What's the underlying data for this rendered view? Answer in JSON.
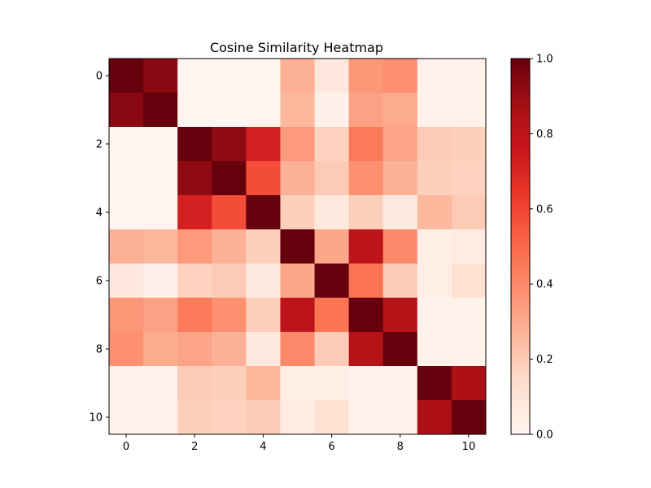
{
  "chart_data": {
    "type": "heatmap",
    "title": "Cosine Similarity Heatmap",
    "xlabel": "",
    "ylabel": "",
    "x_ticks": [
      "0",
      "2",
      "4",
      "6",
      "8",
      "10"
    ],
    "y_ticks": [
      "0",
      "2",
      "4",
      "6",
      "8",
      "10"
    ],
    "colormap": "Reds",
    "vmin": 0.0,
    "vmax": 1.0,
    "colorbar_ticks": [
      "0.0",
      "0.2",
      "0.4",
      "0.6",
      "0.8",
      "1.0"
    ],
    "matrix": [
      [
        1.0,
        0.93,
        0.0,
        0.0,
        0.0,
        0.28,
        0.08,
        0.36,
        0.38,
        0.02,
        0.02
      ],
      [
        0.93,
        1.0,
        0.0,
        0.0,
        0.0,
        0.26,
        0.03,
        0.33,
        0.3,
        0.02,
        0.02
      ],
      [
        0.0,
        0.0,
        1.0,
        0.92,
        0.72,
        0.35,
        0.17,
        0.45,
        0.32,
        0.2,
        0.18
      ],
      [
        0.0,
        0.0,
        0.92,
        1.0,
        0.58,
        0.28,
        0.2,
        0.38,
        0.28,
        0.18,
        0.17
      ],
      [
        0.0,
        0.0,
        0.72,
        0.58,
        1.0,
        0.18,
        0.07,
        0.18,
        0.07,
        0.26,
        0.2
      ],
      [
        0.28,
        0.26,
        0.35,
        0.28,
        0.18,
        1.0,
        0.31,
        0.8,
        0.4,
        0.04,
        0.06
      ],
      [
        0.08,
        0.03,
        0.17,
        0.2,
        0.07,
        0.31,
        1.0,
        0.47,
        0.2,
        0.04,
        0.12
      ],
      [
        0.36,
        0.33,
        0.45,
        0.38,
        0.18,
        0.8,
        0.47,
        1.0,
        0.82,
        0.02,
        0.02
      ],
      [
        0.38,
        0.3,
        0.32,
        0.28,
        0.07,
        0.4,
        0.2,
        0.82,
        1.0,
        0.02,
        0.02
      ],
      [
        0.02,
        0.02,
        0.2,
        0.18,
        0.26,
        0.04,
        0.04,
        0.02,
        0.02,
        1.0,
        0.85
      ],
      [
        0.02,
        0.02,
        0.18,
        0.17,
        0.2,
        0.06,
        0.12,
        0.02,
        0.02,
        0.85,
        1.0
      ]
    ],
    "grid": false
  }
}
